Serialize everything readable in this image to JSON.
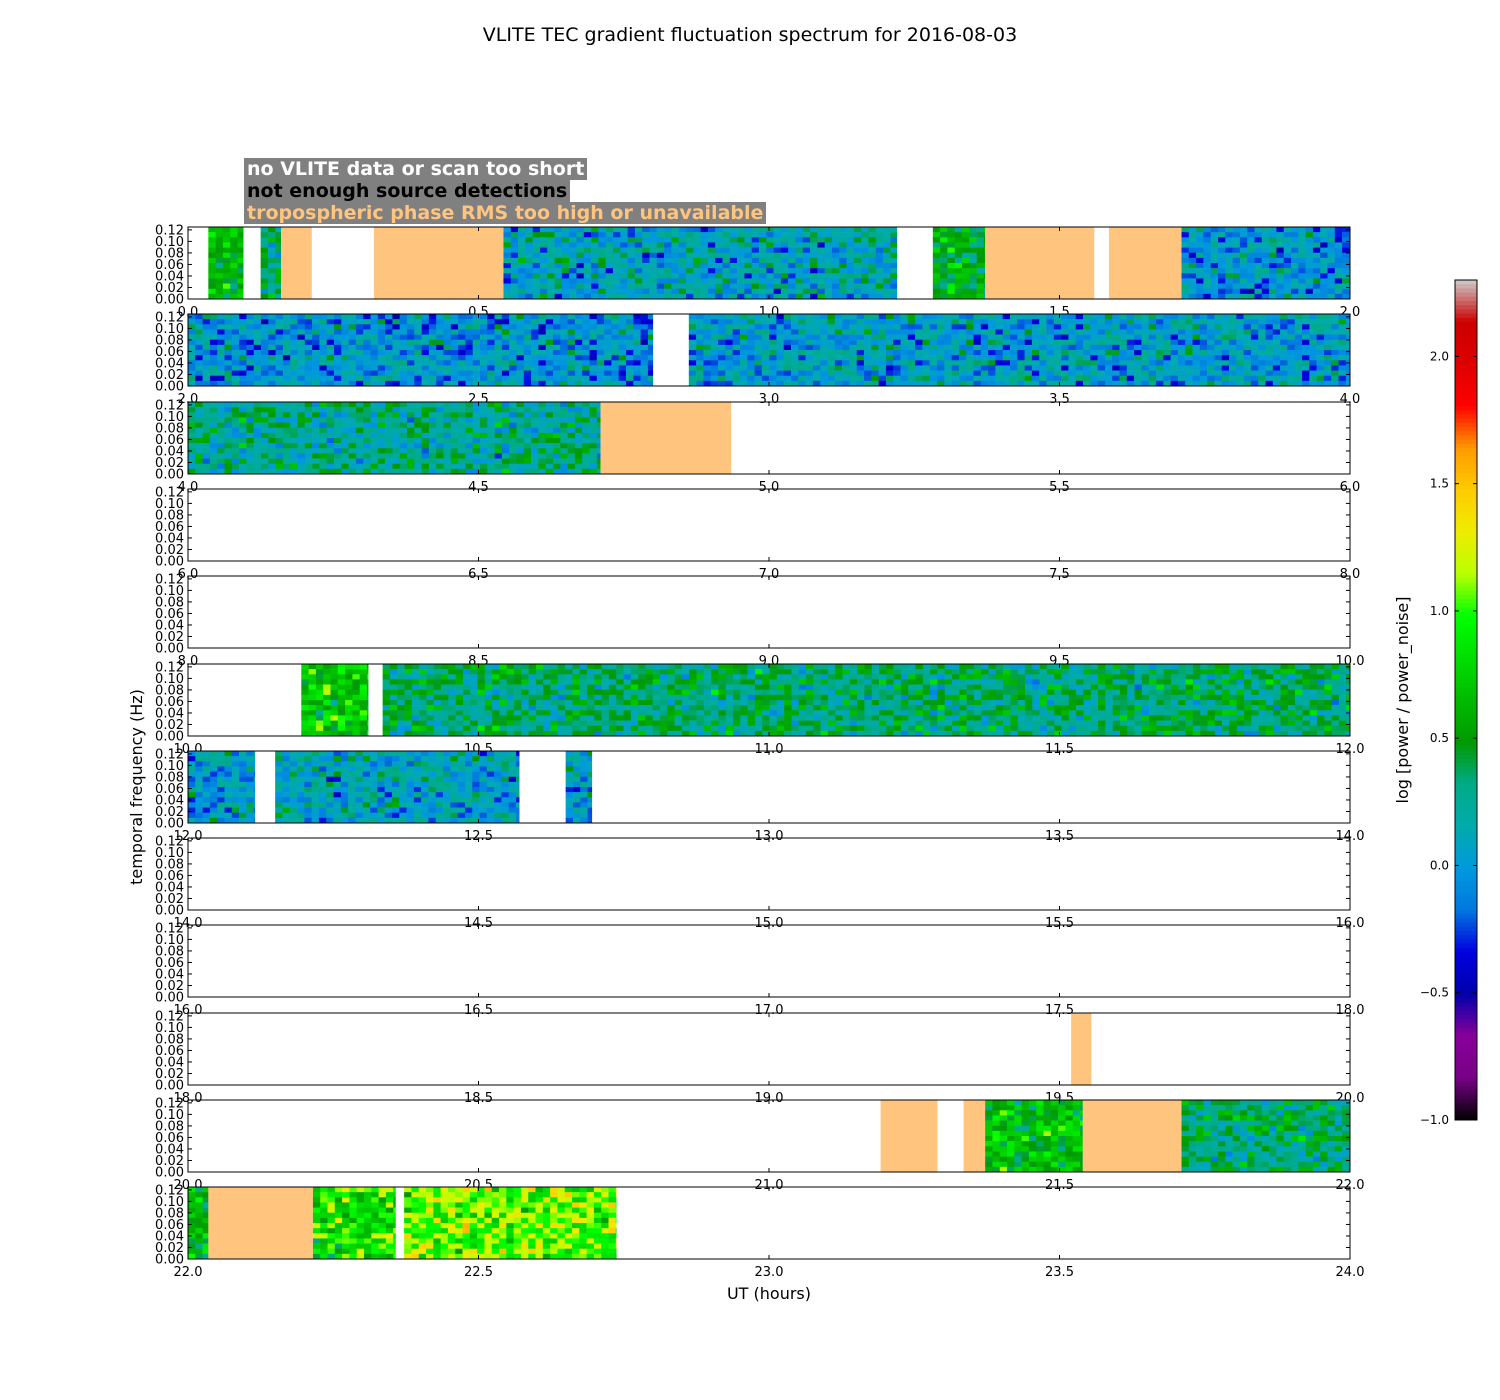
{
  "chart_data": {
    "type": "heatmap",
    "title": "VLITE TEC gradient fluctuation spectrum for 2016-08-03",
    "xlabel": "UT (hours)",
    "ylabel": "temporal frequency (Hz)",
    "colorbar_label": "log [power / power_noise]",
    "colorbar_ticks": [
      "2.0",
      "1.5",
      "1.0",
      "0.5",
      "0.0",
      "−0.5",
      "−1.0"
    ],
    "colorbar_range": [
      -1.0,
      2.3
    ],
    "colormap": "nipy_spectral",
    "ylim": [
      0.0,
      0.125
    ],
    "y_ticks": [
      "0.00",
      "0.02",
      "0.04",
      "0.06",
      "0.08",
      "0.10",
      "0.12"
    ],
    "legend": [
      {
        "label": "no VLITE data or scan too short",
        "text_color": "#ffffff"
      },
      {
        "label": "not enough source detections",
        "text_color": "#000000"
      },
      {
        "label": "tropospheric phase RMS too high or unavailable",
        "text_color": "#ffc57f"
      }
    ],
    "flag_color": "#ffc57f",
    "panels": [
      {
        "x_range": [
          0,
          2
        ],
        "x_ticks": [
          "0.0",
          "0.5",
          "1.0",
          "1.5",
          "2.0"
        ],
        "segments": [
          {
            "start": 0.035,
            "end": 0.095,
            "type": "data",
            "level": 0.6
          },
          {
            "start": 0.125,
            "end": 0.16,
            "type": "data",
            "level": 0.3
          },
          {
            "start": 0.16,
            "end": 0.213,
            "type": "flag"
          },
          {
            "start": 0.32,
            "end": 0.543,
            "type": "flag"
          },
          {
            "start": 0.543,
            "end": 1.22,
            "type": "data",
            "level": 0.1
          },
          {
            "start": 1.282,
            "end": 1.372,
            "type": "data",
            "level": 0.5
          },
          {
            "start": 1.372,
            "end": 1.56,
            "type": "flag"
          },
          {
            "start": 1.585,
            "end": 1.71,
            "type": "flag"
          },
          {
            "start": 1.71,
            "end": 2.0,
            "type": "data",
            "level": 0.0
          }
        ]
      },
      {
        "x_range": [
          2,
          4
        ],
        "x_ticks": [
          "2.0",
          "2.5",
          "3.0",
          "3.5",
          "4.0"
        ],
        "segments": [
          {
            "start": 2.0,
            "end": 2.8,
            "type": "data",
            "level": 0.0
          },
          {
            "start": 2.862,
            "end": 4.0,
            "type": "data",
            "level": 0.05
          }
        ]
      },
      {
        "x_range": [
          4,
          6
        ],
        "x_ticks": [
          "4.0",
          "4.5",
          "5.0",
          "5.5",
          "6.0"
        ],
        "segments": [
          {
            "start": 4.0,
            "end": 4.71,
            "type": "data",
            "level": 0.25
          },
          {
            "start": 4.71,
            "end": 4.935,
            "type": "flag"
          }
        ]
      },
      {
        "x_range": [
          6,
          8
        ],
        "x_ticks": [
          "6.0",
          "6.5",
          "7.0",
          "7.5",
          "8.0"
        ],
        "segments": []
      },
      {
        "x_range": [
          8,
          10
        ],
        "x_ticks": [
          "8.0",
          "8.5",
          "9.0",
          "9.5",
          "10.0"
        ],
        "segments": []
      },
      {
        "x_range": [
          10,
          12
        ],
        "x_ticks": [
          "10.0",
          "10.5",
          "11.0",
          "11.5",
          "12.0"
        ],
        "segments": [
          {
            "start": 10.195,
            "end": 10.31,
            "type": "data",
            "level": 0.7
          },
          {
            "start": 10.335,
            "end": 12.0,
            "type": "data",
            "level": 0.35
          }
        ]
      },
      {
        "x_range": [
          12,
          14
        ],
        "x_ticks": [
          "12.0",
          "12.5",
          "13.0",
          "13.5",
          "14.0"
        ],
        "segments": [
          {
            "start": 12.0,
            "end": 12.115,
            "type": "data",
            "level": 0.05
          },
          {
            "start": 12.15,
            "end": 12.57,
            "type": "data",
            "level": 0.1
          },
          {
            "start": 12.65,
            "end": 12.695,
            "type": "data",
            "level": 0.0
          }
        ]
      },
      {
        "x_range": [
          14,
          16
        ],
        "x_ticks": [
          "14.0",
          "14.5",
          "15.0",
          "15.5",
          "16.0"
        ],
        "segments": []
      },
      {
        "x_range": [
          16,
          18
        ],
        "x_ticks": [
          "16.0",
          "16.5",
          "17.0",
          "17.5",
          "18.0"
        ],
        "segments": []
      },
      {
        "x_range": [
          18,
          20
        ],
        "x_ticks": [
          "18.0",
          "18.5",
          "19.0",
          "19.5",
          "20.0"
        ],
        "segments": [
          {
            "start": 19.52,
            "end": 19.555,
            "type": "flag"
          }
        ]
      },
      {
        "x_range": [
          20,
          22
        ],
        "x_ticks": [
          "20.0",
          "20.5",
          "21.0",
          "21.5",
          "22.0"
        ],
        "segments": [
          {
            "start": 21.192,
            "end": 21.29,
            "type": "flag"
          },
          {
            "start": 21.335,
            "end": 21.372,
            "type": "flag"
          },
          {
            "start": 21.372,
            "end": 21.54,
            "type": "data",
            "level": 0.65
          },
          {
            "start": 21.54,
            "end": 21.71,
            "type": "flag"
          },
          {
            "start": 21.71,
            "end": 22.0,
            "type": "data",
            "level": 0.35
          }
        ]
      },
      {
        "x_range": [
          22,
          24
        ],
        "x_ticks": [
          "22.0",
          "22.5",
          "23.0",
          "23.5",
          "24.0"
        ],
        "segments": [
          {
            "start": 22.0,
            "end": 22.035,
            "type": "data",
            "level": 0.6
          },
          {
            "start": 22.035,
            "end": 22.215,
            "type": "flag"
          },
          {
            "start": 22.215,
            "end": 22.357,
            "type": "data",
            "level": 0.85
          },
          {
            "start": 22.372,
            "end": 22.737,
            "type": "data",
            "level": 1.05
          }
        ]
      }
    ]
  }
}
